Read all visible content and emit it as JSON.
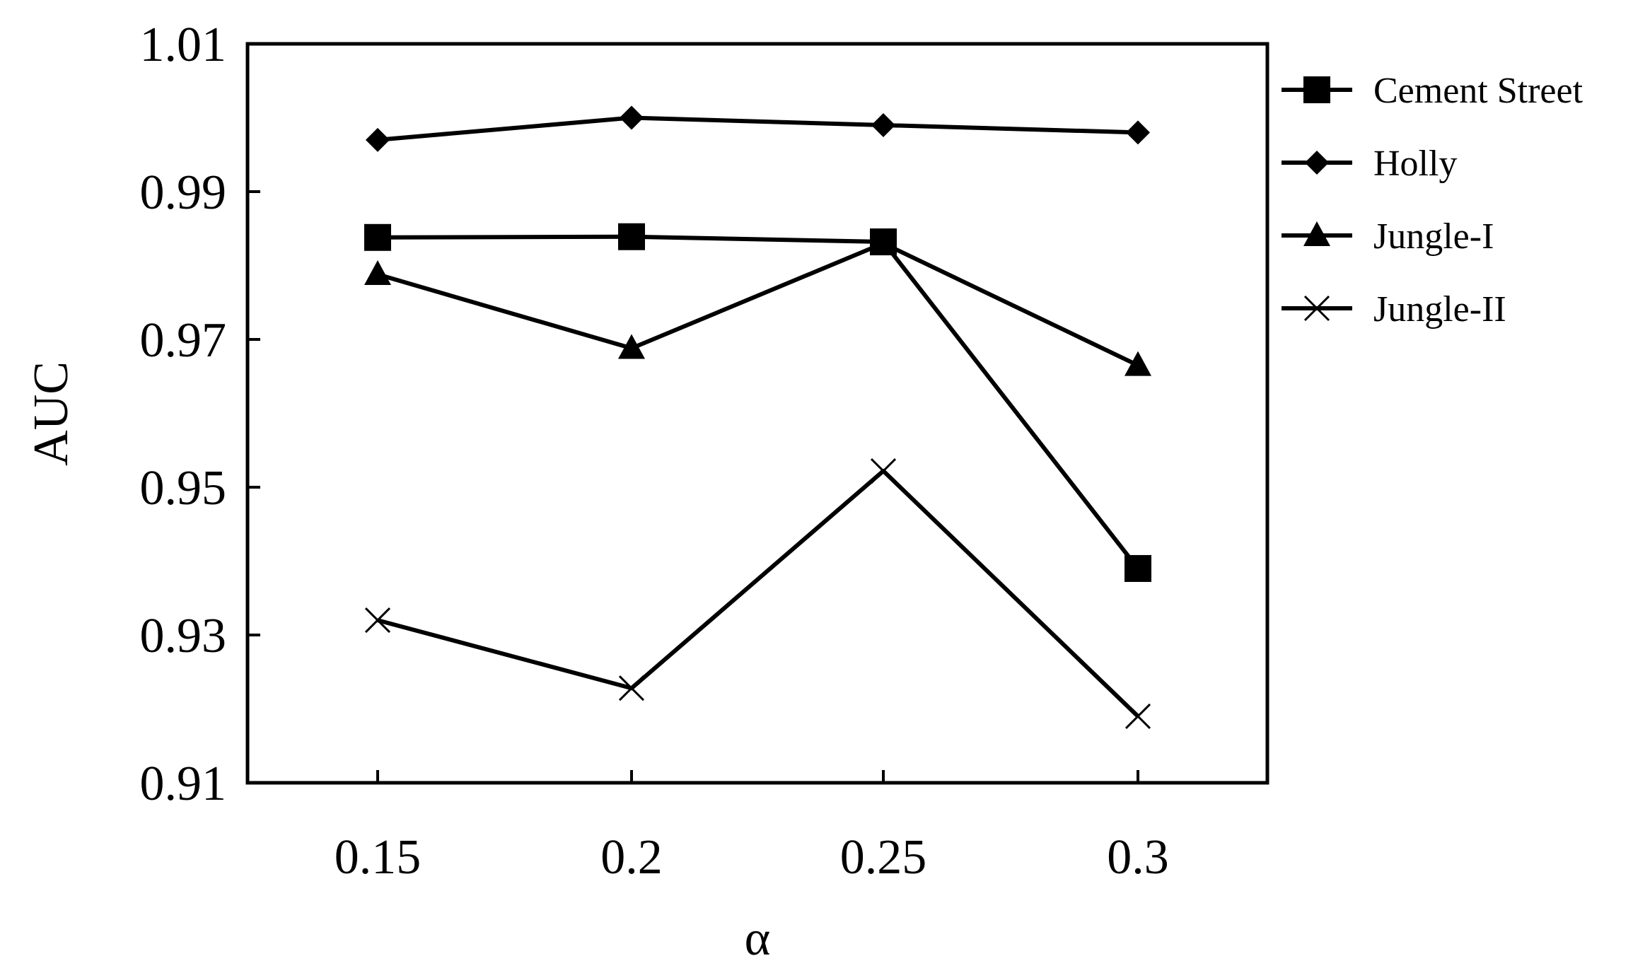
{
  "chart_data": {
    "type": "line",
    "title": "",
    "xlabel": "α",
    "ylabel": "AUC",
    "x": [
      0.15,
      0.2,
      0.25,
      0.3
    ],
    "x_tick_labels": [
      "0.15",
      "0.2",
      "0.25",
      "0.3"
    ],
    "ylim": [
      0.91,
      1.01
    ],
    "y_ticks": [
      0.91,
      0.93,
      0.95,
      0.97,
      0.99,
      1.01
    ],
    "y_tick_labels": [
      "0.91",
      "0.93",
      "0.95",
      "0.97",
      "0.99",
      "1.01"
    ],
    "grid": false,
    "legend_position": "right",
    "line_color": "#000000",
    "series": [
      {
        "name": "Cement Street",
        "marker": "square",
        "values": [
          0.9838,
          0.9839,
          0.9832,
          0.939
        ]
      },
      {
        "name": "Holly",
        "marker": "diamond",
        "values": [
          0.997,
          1.0,
          0.999,
          0.998
        ]
      },
      {
        "name": "Jungle-I",
        "marker": "triangle",
        "values": [
          0.9788,
          0.9688,
          0.983,
          0.9665
        ]
      },
      {
        "name": "Jungle-II",
        "marker": "x",
        "values": [
          0.932,
          0.9228,
          0.9522,
          0.919
        ]
      }
    ]
  }
}
